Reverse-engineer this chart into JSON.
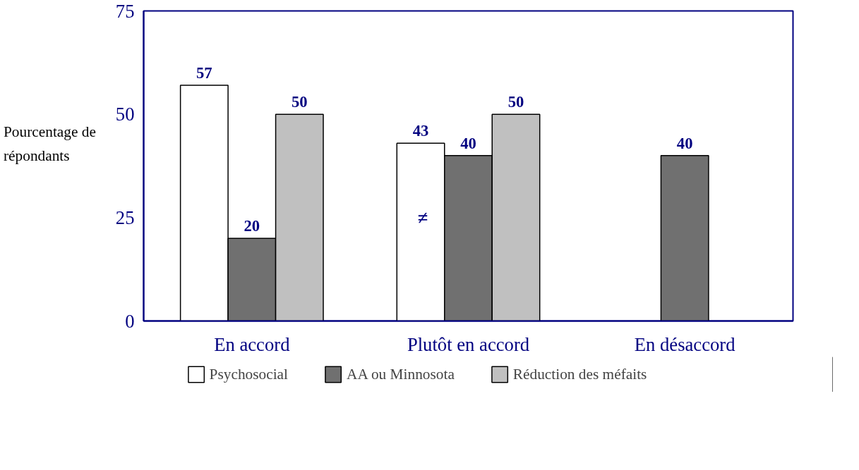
{
  "chart_data": {
    "type": "bar",
    "ylabel": "Pourcentage de répondants",
    "categories": [
      "En accord",
      "Plutôt en accord",
      "En désaccord"
    ],
    "series": [
      {
        "name": "Psychosocial",
        "color": "#ffffff",
        "values": [
          57,
          43,
          null
        ]
      },
      {
        "name": "AA ou Minnosota",
        "color": "#707070",
        "values": [
          20,
          40,
          40
        ]
      },
      {
        "name": "Réduction des méfaits",
        "color": "#c0c0c0",
        "values": [
          50,
          50,
          null
        ]
      }
    ],
    "ylim": [
      0,
      75
    ],
    "yticks": [
      0,
      25,
      50,
      75
    ],
    "grid": false,
    "legend": "bottom",
    "data_labels": true,
    "annotations": [
      "≠"
    ]
  }
}
